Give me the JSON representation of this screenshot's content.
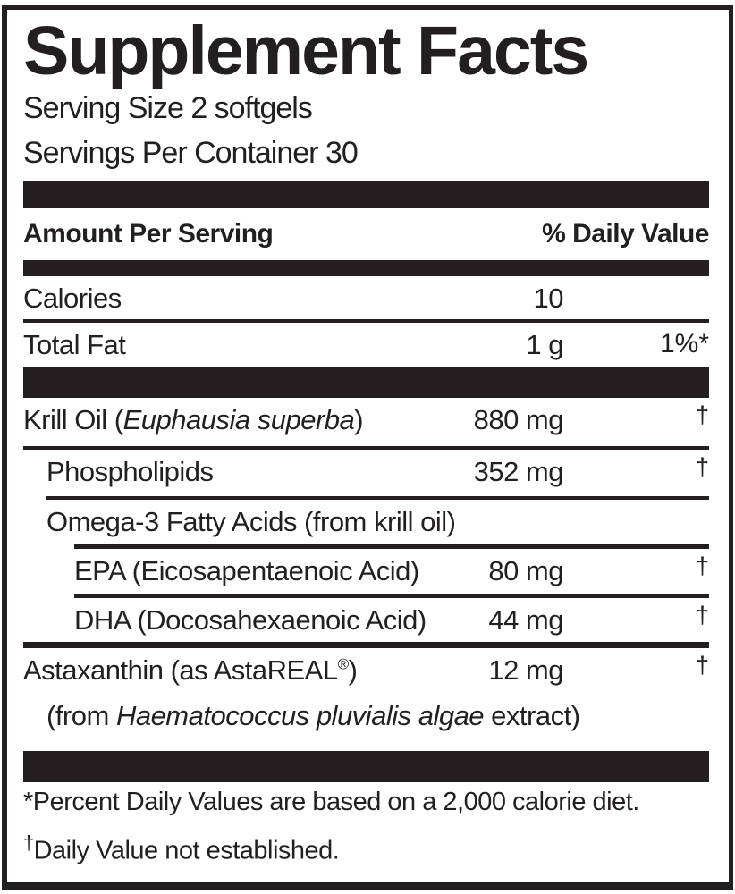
{
  "label": {
    "title": "Supplement Facts",
    "serving_size": "Serving Size 2 softgels",
    "servings_per_container": "Servings Per Container 30",
    "header": {
      "amount_per_serving": "Amount Per Serving",
      "daily_value": "% Daily Value"
    },
    "rows": [
      {
        "name": "Calories",
        "amount": "10",
        "dv": ""
      },
      {
        "name": "Total Fat",
        "amount": "1 g",
        "dv": "1%*"
      },
      {
        "name_prefix": "Krill Oil (",
        "name_italic": "Euphausia superba",
        "name_suffix": ")",
        "amount": "880 mg",
        "dv": "†"
      },
      {
        "name": "Phospholipids",
        "amount": "352 mg",
        "dv": "†"
      },
      {
        "name": "Omega-3 Fatty Acids (from krill oil)",
        "amount": "",
        "dv": ""
      },
      {
        "name": "EPA (Eicosapentaenoic Acid)",
        "amount": "80 mg",
        "dv": "†"
      },
      {
        "name": "DHA (Docosahexaenoic Acid)",
        "amount": "44 mg",
        "dv": "†"
      },
      {
        "name_prefix": "Astaxanthin (as AstaREAL",
        "name_reg_mark": "®",
        "name_suffix": ")",
        "amount": "12 mg",
        "dv": "†",
        "sub_prefix": "(from ",
        "sub_italic": "Haematococcus pluvialis algae",
        "sub_suffix": " extract)"
      }
    ],
    "footnotes": [
      {
        "marker": "*",
        "text": "Percent Daily Values are based on a 2,000 calorie diet."
      },
      {
        "marker": "†",
        "text": "Daily Value not established."
      }
    ],
    "colors": {
      "ink": "#231f20",
      "background": "#ffffff"
    }
  }
}
